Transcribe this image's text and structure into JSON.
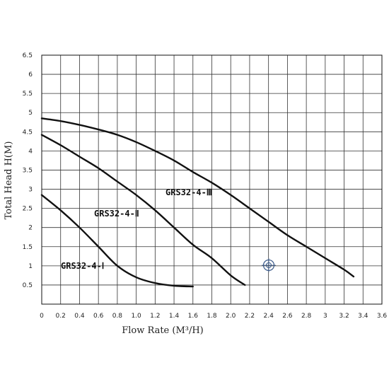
{
  "chart_data": {
    "type": "line",
    "xlabel": "Flow Rate (M³/H)",
    "ylabel": "Total Head H(M)",
    "xlim": [
      0,
      3.6
    ],
    "ylim": [
      0,
      6.5
    ],
    "grid": true,
    "x_ticks": [
      "0",
      "0.2",
      "0.4",
      "0.6",
      "0.8",
      "1.0",
      "1.2",
      "1.4",
      "1.6",
      "1.8",
      "2.0",
      "2.2",
      "2.4",
      "2.6",
      "2.8",
      "3",
      "3.2",
      "3.4",
      "3.6"
    ],
    "y_ticks": [
      "0.5",
      "1",
      "1.5",
      "2",
      "2.5",
      "3",
      "3.5",
      "4",
      "4.5",
      "5",
      "5.5",
      "6",
      "6.5"
    ],
    "series": [
      {
        "name": "GRS32-4-Ⅰ",
        "x": [
          0,
          0.2,
          0.4,
          0.6,
          0.8,
          1.0,
          1.2,
          1.4,
          1.6
        ],
        "y": [
          2.85,
          2.45,
          2.0,
          1.5,
          1.0,
          0.7,
          0.55,
          0.48,
          0.46
        ]
      },
      {
        "name": "GRS32-4-Ⅱ",
        "x": [
          0,
          0.2,
          0.4,
          0.6,
          0.8,
          1.0,
          1.2,
          1.4,
          1.6,
          1.8,
          2.0,
          2.15
        ],
        "y": [
          4.42,
          4.15,
          3.85,
          3.55,
          3.2,
          2.85,
          2.45,
          2.0,
          1.55,
          1.2,
          0.75,
          0.5
        ]
      },
      {
        "name": "GRS32-4-Ⅲ",
        "x": [
          0,
          0.2,
          0.4,
          0.6,
          0.8,
          1.0,
          1.2,
          1.4,
          1.6,
          1.8,
          2.0,
          2.2,
          2.4,
          2.6,
          2.8,
          3.0,
          3.2,
          3.3
        ],
        "y": [
          4.85,
          4.78,
          4.68,
          4.56,
          4.42,
          4.23,
          4.0,
          3.75,
          3.45,
          3.17,
          2.85,
          2.5,
          2.15,
          1.8,
          1.5,
          1.2,
          0.9,
          0.72
        ]
      }
    ],
    "annotations": [
      "GRS32-4-Ⅰ",
      "GRS32-4-Ⅱ",
      "GRS32-4-Ⅲ"
    ]
  }
}
